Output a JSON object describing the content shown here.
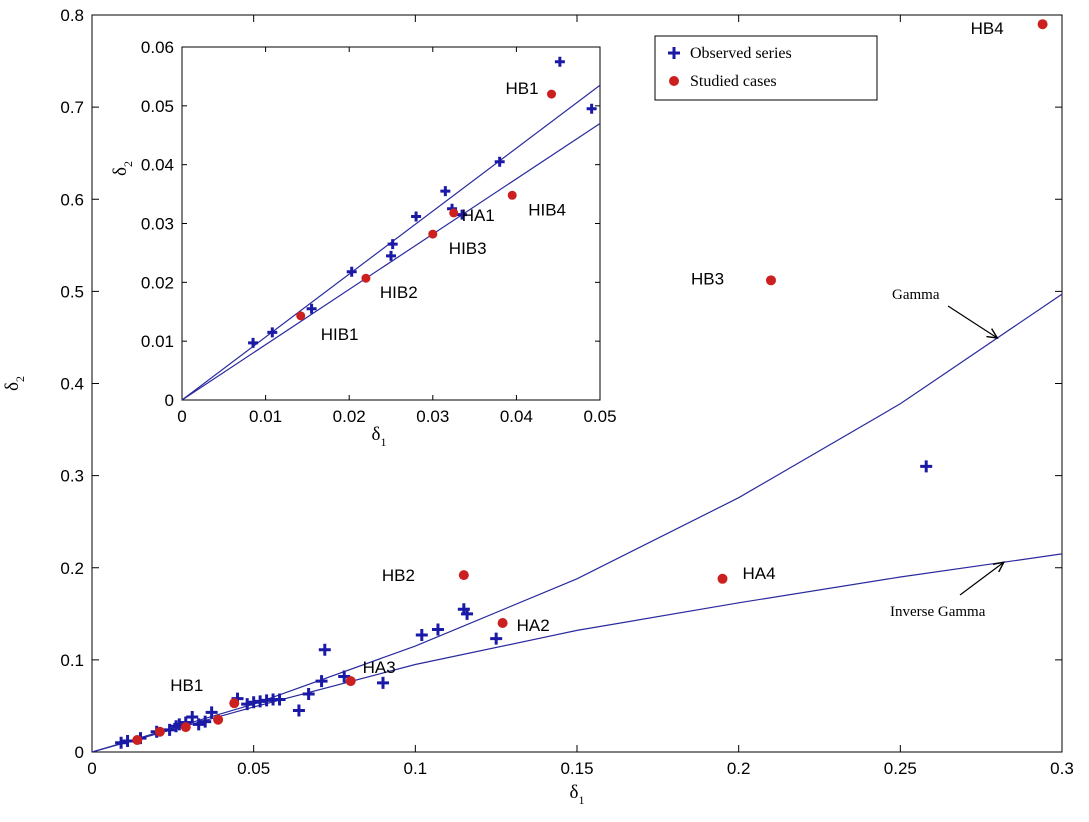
{
  "chart_data": [
    {
      "type": "scatter",
      "id": "main",
      "xlim": [
        0,
        0.3
      ],
      "ylim": [
        0,
        0.8
      ],
      "x_ticks": [
        "0",
        "0.05",
        "0.1",
        "0.15",
        "0.2",
        "0.25",
        "0.3"
      ],
      "y_ticks": [
        "0",
        "0.1",
        "0.2",
        "0.3",
        "0.4",
        "0.5",
        "0.6",
        "0.7",
        "0.8"
      ],
      "xlabel": "δ",
      "xlabel_sub": "1",
      "ylabel": "δ",
      "ylabel_sub": "2",
      "legend": {
        "placement": "top-right",
        "entries": [
          {
            "label": "Observed series",
            "marker": "plus",
            "color": "#1a1aa6"
          },
          {
            "label": "Studied cases",
            "marker": "dot",
            "color": "#cc1f1f"
          }
        ]
      },
      "series": [
        {
          "name": "Observed series",
          "marker": "plus",
          "color": "#1a1aa6",
          "points": [
            [
              0.009,
              0.01
            ],
            [
              0.011,
              0.012
            ],
            [
              0.015,
              0.015
            ],
            [
              0.02,
              0.022
            ],
            [
              0.024,
              0.024
            ],
            [
              0.026,
              0.028
            ],
            [
              0.027,
              0.03
            ],
            [
              0.029,
              0.032
            ],
            [
              0.031,
              0.038
            ],
            [
              0.033,
              0.03
            ],
            [
              0.035,
              0.033
            ],
            [
              0.037,
              0.043
            ],
            [
              0.045,
              0.058
            ],
            [
              0.048,
              0.052
            ],
            [
              0.05,
              0.054
            ],
            [
              0.052,
              0.055
            ],
            [
              0.054,
              0.056
            ],
            [
              0.056,
              0.057
            ],
            [
              0.058,
              0.057
            ],
            [
              0.064,
              0.045
            ],
            [
              0.067,
              0.063
            ],
            [
              0.071,
              0.077
            ],
            [
              0.072,
              0.111
            ],
            [
              0.078,
              0.082
            ],
            [
              0.09,
              0.075
            ],
            [
              0.102,
              0.127
            ],
            [
              0.107,
              0.133
            ],
            [
              0.115,
              0.155
            ],
            [
              0.116,
              0.15
            ],
            [
              0.125,
              0.123
            ],
            [
              0.258,
              0.31
            ]
          ]
        },
        {
          "name": "Studied cases",
          "marker": "dot",
          "color": "#cc1f1f",
          "points": [
            [
              0.014,
              0.013
            ],
            [
              0.021,
              0.022
            ],
            [
              0.029,
              0.027
            ],
            [
              0.039,
              0.035
            ],
            [
              0.044,
              0.053
            ],
            [
              0.08,
              0.077
            ],
            [
              0.115,
              0.192
            ],
            [
              0.127,
              0.14
            ],
            [
              0.195,
              0.188
            ],
            [
              0.21,
              0.512
            ],
            [
              0.294,
              0.79
            ]
          ]
        },
        {
          "name": "Gamma",
          "type": "line",
          "color": "#2a2a9e",
          "points": [
            [
              0,
              0
            ],
            [
              0.05,
              0.052
            ],
            [
              0.1,
              0.115
            ],
            [
              0.15,
              0.188
            ],
            [
              0.2,
              0.276
            ],
            [
              0.25,
              0.378
            ],
            [
              0.3,
              0.497
            ]
          ]
        },
        {
          "name": "Inverse Gamma",
          "type": "line",
          "color": "#2a2a9e",
          "points": [
            [
              0,
              0
            ],
            [
              0.05,
              0.049
            ],
            [
              0.1,
              0.095
            ],
            [
              0.15,
              0.132
            ],
            [
              0.2,
              0.162
            ],
            [
              0.25,
              0.19
            ],
            [
              0.3,
              0.215
            ]
          ]
        }
      ],
      "annotations": [
        {
          "text": "HB1",
          "x": 0.044,
          "y": 0.053
        },
        {
          "text": "HA3",
          "x": 0.08,
          "y": 0.077
        },
        {
          "text": "HB2",
          "x": 0.115,
          "y": 0.192
        },
        {
          "text": "HA2",
          "x": 0.127,
          "y": 0.14
        },
        {
          "text": "HA4",
          "x": 0.195,
          "y": 0.188
        },
        {
          "text": "HB3",
          "x": 0.21,
          "y": 0.512
        },
        {
          "text": "HB4",
          "x": 0.294,
          "y": 0.79
        }
      ],
      "curve_labels": [
        {
          "text": "Gamma",
          "series": "Gamma",
          "point_to_x": 0.28
        },
        {
          "text": "Inverse Gamma",
          "series": "Inverse Gamma",
          "point_to_x": 0.282
        }
      ]
    },
    {
      "type": "scatter",
      "id": "inset",
      "xlim": [
        0,
        0.05
      ],
      "ylim": [
        0,
        0.06
      ],
      "x_ticks": [
        "0",
        "0.01",
        "0.02",
        "0.03",
        "0.04",
        "0.05"
      ],
      "y_ticks": [
        "0",
        "0.01",
        "0.02",
        "0.03",
        "0.04",
        "0.05",
        "0.06"
      ],
      "xlabel": "δ",
      "xlabel_sub": "1",
      "ylabel": "δ",
      "ylabel_sub": "2",
      "series": [
        {
          "name": "Observed series",
          "marker": "plus",
          "color": "#1a1aa6",
          "points": [
            [
              0.0085,
              0.0097
            ],
            [
              0.0108,
              0.0115
            ],
            [
              0.0155,
              0.0155
            ],
            [
              0.0203,
              0.0218
            ],
            [
              0.025,
              0.0245
            ],
            [
              0.0252,
              0.0265
            ],
            [
              0.028,
              0.0312
            ],
            [
              0.0315,
              0.0355
            ],
            [
              0.0323,
              0.0325
            ],
            [
              0.0335,
              0.0315
            ],
            [
              0.038,
              0.0405
            ],
            [
              0.0452,
              0.0575
            ],
            [
              0.049,
              0.0495
            ]
          ]
        },
        {
          "name": "Studied cases",
          "marker": "dot",
          "color": "#cc1f1f",
          "points": [
            [
              0.0142,
              0.0143
            ],
            [
              0.022,
              0.0207
            ],
            [
              0.0325,
              0.0318
            ],
            [
              0.03,
              0.0282
            ],
            [
              0.0395,
              0.0348
            ],
            [
              0.0442,
              0.052
            ]
          ]
        },
        {
          "name": "Gamma",
          "type": "line",
          "color": "#2a2a9e",
          "points": [
            [
              0,
              0
            ],
            [
              0.05,
              0.0535
            ]
          ]
        },
        {
          "name": "Inverse Gamma",
          "type": "line",
          "color": "#2a2a9e",
          "points": [
            [
              0,
              0
            ],
            [
              0.05,
              0.047
            ]
          ]
        }
      ],
      "annotations": [
        {
          "text": "HIB1",
          "x": 0.0142,
          "y": 0.0143
        },
        {
          "text": "HIB2",
          "x": 0.022,
          "y": 0.0207
        },
        {
          "text": "HIB3",
          "x": 0.03,
          "y": 0.0282
        },
        {
          "text": "HA1",
          "x": 0.0325,
          "y": 0.0318
        },
        {
          "text": "HIB4",
          "x": 0.0395,
          "y": 0.0348
        },
        {
          "text": "HB1",
          "x": 0.0442,
          "y": 0.052
        }
      ]
    }
  ]
}
